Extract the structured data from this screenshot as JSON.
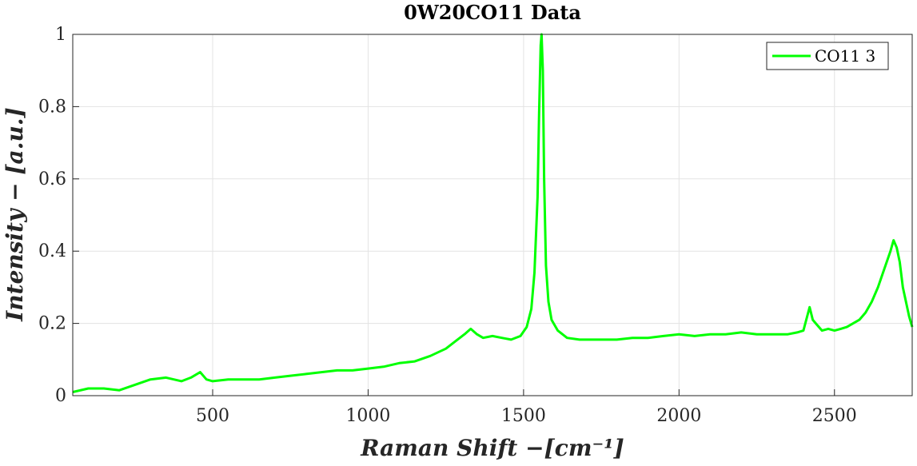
{
  "chart_data": {
    "type": "line",
    "title": "0W20CO11 Data",
    "xlabel": "Raman Shift  −[cm⁻¹]",
    "ylabel": "Intensity  − [a.u.]",
    "xlim": [
      50,
      2750
    ],
    "ylim": [
      0,
      1
    ],
    "xticks": [
      500,
      1000,
      1500,
      2000,
      2500
    ],
    "yticks": [
      0,
      0.2,
      0.4,
      0.6,
      0.8,
      1
    ],
    "xtick_labels": [
      "500",
      "1000",
      "1500",
      "2000",
      "2500"
    ],
    "ytick_labels": [
      "0",
      "0.2",
      "0.4",
      "0.6",
      "0.8",
      "1"
    ],
    "grid": true,
    "legend_position": "top-right",
    "series": [
      {
        "name": "CO11 3",
        "color": "#00ff00",
        "x": [
          50,
          100,
          150,
          200,
          250,
          300,
          350,
          400,
          430,
          460,
          480,
          500,
          550,
          600,
          650,
          700,
          750,
          800,
          850,
          900,
          950,
          1000,
          1050,
          1100,
          1150,
          1200,
          1250,
          1280,
          1310,
          1330,
          1350,
          1370,
          1400,
          1430,
          1460,
          1490,
          1510,
          1525,
          1535,
          1545,
          1550,
          1555,
          1558,
          1562,
          1566,
          1572,
          1580,
          1590,
          1610,
          1640,
          1680,
          1720,
          1760,
          1800,
          1850,
          1900,
          1950,
          2000,
          2050,
          2100,
          2150,
          2200,
          2250,
          2300,
          2350,
          2380,
          2400,
          2420,
          2430,
          2440,
          2460,
          2480,
          2500,
          2520,
          2540,
          2560,
          2580,
          2600,
          2620,
          2640,
          2660,
          2680,
          2690,
          2700,
          2710,
          2720,
          2730,
          2740,
          2750
        ],
        "y": [
          0.01,
          0.02,
          0.02,
          0.015,
          0.03,
          0.045,
          0.05,
          0.04,
          0.05,
          0.065,
          0.045,
          0.04,
          0.045,
          0.045,
          0.045,
          0.05,
          0.055,
          0.06,
          0.065,
          0.07,
          0.07,
          0.075,
          0.08,
          0.09,
          0.095,
          0.11,
          0.13,
          0.15,
          0.17,
          0.185,
          0.17,
          0.16,
          0.165,
          0.16,
          0.155,
          0.165,
          0.19,
          0.24,
          0.34,
          0.55,
          0.78,
          0.97,
          1.0,
          0.9,
          0.6,
          0.36,
          0.26,
          0.21,
          0.18,
          0.16,
          0.155,
          0.155,
          0.155,
          0.155,
          0.16,
          0.16,
          0.165,
          0.17,
          0.165,
          0.17,
          0.17,
          0.175,
          0.17,
          0.17,
          0.17,
          0.175,
          0.18,
          0.245,
          0.21,
          0.2,
          0.18,
          0.185,
          0.18,
          0.185,
          0.19,
          0.2,
          0.21,
          0.23,
          0.26,
          0.3,
          0.35,
          0.4,
          0.43,
          0.41,
          0.37,
          0.3,
          0.26,
          0.22,
          0.19
        ]
      }
    ]
  }
}
